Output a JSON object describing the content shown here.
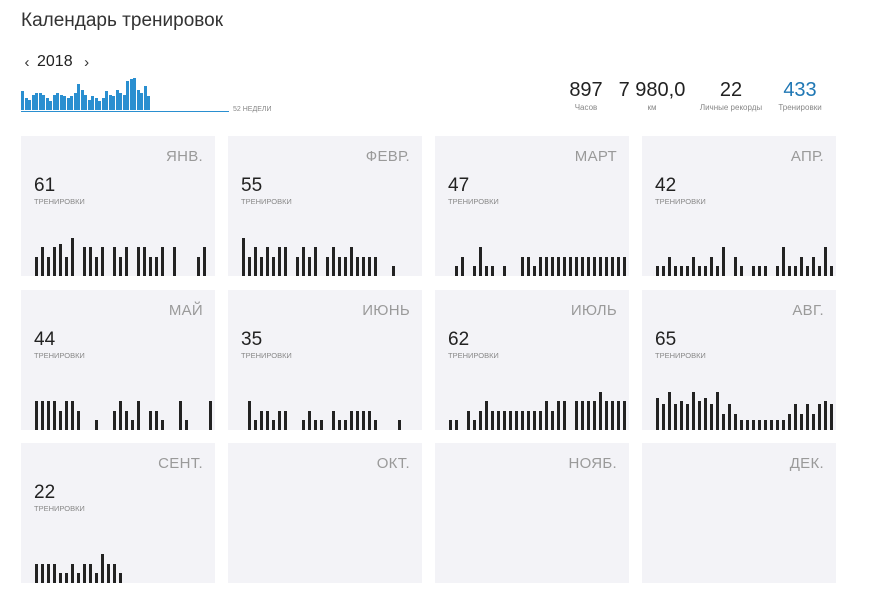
{
  "page_title": "Календарь тренировок",
  "year": "2018",
  "weeks_label": "52 НЕДЕЛИ",
  "accent_color": "#1f77b4",
  "bar_color": "#2a8fd0",
  "weekly_activity": [
    0.55,
    0.35,
    0.3,
    0.45,
    0.5,
    0.5,
    0.45,
    0.35,
    0.25,
    0.45,
    0.5,
    0.45,
    0.4,
    0.35,
    0.4,
    0.5,
    0.75,
    0.6,
    0.45,
    0.3,
    0.4,
    0.35,
    0.25,
    0.35,
    0.55,
    0.45,
    0.4,
    0.6,
    0.5,
    0.45,
    0.85,
    0.9,
    0.95,
    0.6,
    0.5,
    0.7,
    0.4
  ],
  "summary": [
    {
      "value": "897",
      "label": "Часов"
    },
    {
      "value": "7 980,0",
      "label": "км"
    },
    {
      "value": "22",
      "label": "Личные рекорды"
    },
    {
      "value": "433",
      "label": "Тренировки"
    }
  ],
  "months": [
    {
      "name": "ЯНВ.",
      "count": "61",
      "sub": "ТРЕНИРОВКИ",
      "days": [
        0.6,
        0.9,
        0.6,
        0.9,
        1,
        0.6,
        1.2,
        0,
        0.9,
        0.9,
        0.6,
        0.9,
        0,
        0.9,
        0.6,
        0.9,
        0,
        0.9,
        0.9,
        0.6,
        0.6,
        0.9,
        0,
        0.9,
        0,
        0,
        0,
        0.6,
        0.9,
        0
      ]
    },
    {
      "name": "ФЕВР.",
      "count": "55",
      "sub": "ТРЕНИРОВКИ",
      "days": [
        1.2,
        0.6,
        0.9,
        0.6,
        0.9,
        0.6,
        0.9,
        0.9,
        0,
        0.6,
        0.9,
        0.6,
        0.9,
        0,
        0.6,
        0.9,
        0.6,
        0.6,
        0.9,
        0.6,
        0.6,
        0.6,
        0.6,
        0,
        0,
        0.3
      ]
    },
    {
      "name": "МАРТ",
      "count": "47",
      "sub": "ТРЕНИРОВКИ",
      "days": [
        0,
        0.3,
        0.6,
        0,
        0.3,
        0.9,
        0.3,
        0.3,
        0,
        0.3,
        0,
        0,
        0.6,
        0.6,
        0.3,
        0.6,
        0.6,
        0.6,
        0.6,
        0.6,
        0.6,
        0.6,
        0.6,
        0.6,
        0.6,
        0.6,
        0.6,
        0.6,
        0.6,
        0.6,
        0.9
      ]
    },
    {
      "name": "АПР.",
      "count": "42",
      "sub": "ТРЕНИРОВКИ",
      "days": [
        0.3,
        0.3,
        0.6,
        0.3,
        0.3,
        0.3,
        0.6,
        0.3,
        0.3,
        0.6,
        0.3,
        0.9,
        0,
        0.6,
        0.3,
        0,
        0.3,
        0.3,
        0.3,
        0,
        0.3,
        0.9,
        0.3,
        0.3,
        0.6,
        0.3,
        0.6,
        0.3,
        0.9,
        0.3
      ]
    },
    {
      "name": "МАЙ",
      "count": "44",
      "sub": "ТРЕНИРОВКИ",
      "days": [
        0.9,
        0.9,
        0.9,
        0.9,
        0.6,
        0.9,
        0.9,
        0.6,
        0,
        0,
        0.3,
        0,
        0,
        0.6,
        0.9,
        0.6,
        0.3,
        0.9,
        0,
        0.6,
        0.6,
        0.3,
        0,
        0,
        0.9,
        0.3,
        0,
        0,
        0,
        0.9
      ]
    },
    {
      "name": "ИЮНЬ",
      "count": "35",
      "sub": "ТРЕНИРОВКИ",
      "days": [
        0,
        0.9,
        0.3,
        0.6,
        0.6,
        0.3,
        0.6,
        0.6,
        0,
        0,
        0.3,
        0.6,
        0.3,
        0.3,
        0,
        0.6,
        0.3,
        0.3,
        0.6,
        0.6,
        0.6,
        0.6,
        0.3,
        0,
        0,
        0,
        0.3
      ]
    },
    {
      "name": "ИЮЛЬ",
      "count": "62",
      "sub": "ТРЕНИРОВКИ",
      "days": [
        0.3,
        0.3,
        0,
        0.6,
        0.3,
        0.6,
        0.9,
        0.6,
        0.6,
        0.6,
        0.6,
        0.6,
        0.6,
        0.6,
        0.6,
        0.6,
        0.9,
        0.6,
        0.9,
        0.9,
        0,
        0.9,
        0.9,
        0.9,
        0.9,
        1.2,
        0.9,
        0.9,
        0.9,
        0.9,
        0.6
      ]
    },
    {
      "name": "АВГ.",
      "count": "65",
      "sub": "ТРЕНИРОВКИ",
      "days": [
        1,
        0.8,
        1.2,
        0.8,
        0.9,
        0.8,
        1.2,
        0.9,
        1,
        0.8,
        1.2,
        0.5,
        0.8,
        0.5,
        0.3,
        0.3,
        0.3,
        0.3,
        0.3,
        0.3,
        0.3,
        0.3,
        0.5,
        0.8,
        0.5,
        0.8,
        0.5,
        0.8,
        0.9,
        0.8,
        0.5
      ]
    },
    {
      "name": "СЕНТ.",
      "count": "22",
      "sub": "ТРЕНИРОВКИ",
      "days": [
        0.6,
        0.6,
        0.6,
        0.6,
        0.3,
        0.3,
        0.6,
        0.3,
        0.6,
        0.6,
        0.3,
        0.9,
        0.6,
        0.6,
        0.3
      ]
    },
    {
      "name": "ОКТ.",
      "count": "",
      "sub": "",
      "days": []
    },
    {
      "name": "НОЯБ.",
      "count": "",
      "sub": "",
      "days": []
    },
    {
      "name": "ДЕК.",
      "count": "",
      "sub": "",
      "days": []
    }
  ]
}
